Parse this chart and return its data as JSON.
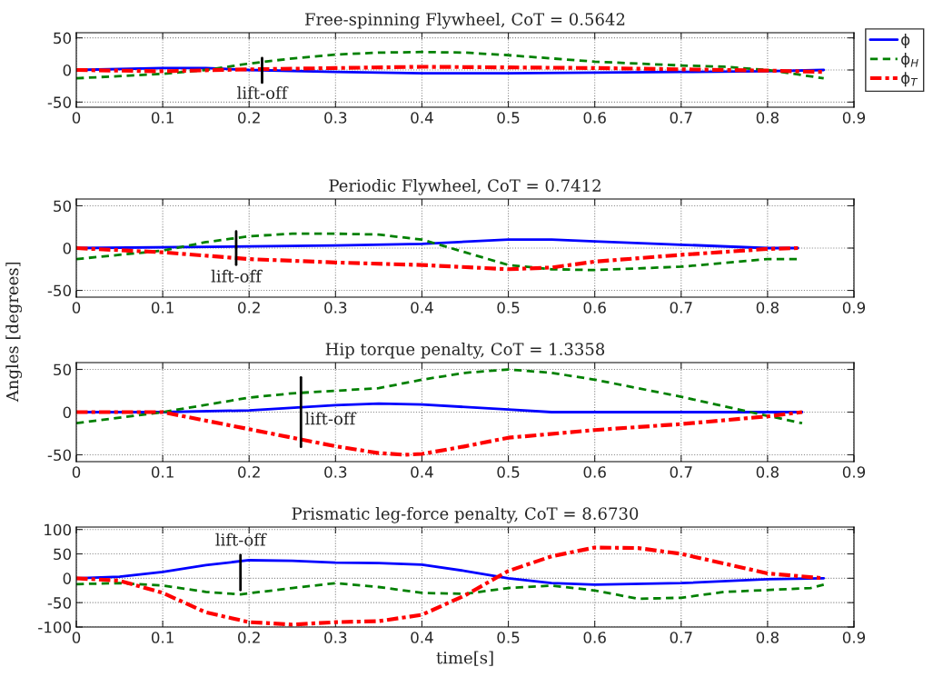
{
  "chart_data": [
    {
      "type": "line",
      "title": "Free-spinning Flywheel, CoT = 0.5642",
      "xlim": [
        0,
        0.9
      ],
      "xticks": [
        0,
        0.1,
        0.2,
        0.3,
        0.4,
        0.5,
        0.6,
        0.7,
        0.8,
        0.9
      ],
      "ylim": [
        -58,
        58
      ],
      "yticks": [
        -50,
        0,
        50
      ],
      "grid": true,
      "legend": "right",
      "ref_lines": [
        {
          "axis": "x",
          "value": 0.215,
          "label": "lift-off",
          "color": "#000000"
        }
      ],
      "series": [
        {
          "name": "ϕ",
          "color": "#0000ff",
          "line_style": "solid",
          "x": [
            0,
            0.1,
            0.15,
            0.2,
            0.3,
            0.4,
            0.5,
            0.6,
            0.7,
            0.8,
            0.865
          ],
          "values": [
            0,
            3,
            3,
            0,
            -3,
            -5,
            -5,
            -4,
            -3,
            -2,
            0
          ]
        },
        {
          "name": "ϕ$_{H}$",
          "color": "#008000",
          "line_style": "dashed",
          "x": [
            0,
            0.1,
            0.15,
            0.2,
            0.25,
            0.3,
            0.35,
            0.4,
            0.45,
            0.5,
            0.55,
            0.6,
            0.7,
            0.75,
            0.8,
            0.865
          ],
          "values": [
            -13,
            -6,
            0,
            10,
            18,
            24,
            27,
            28,
            27,
            23,
            18,
            13,
            7,
            5,
            0,
            -13
          ]
        },
        {
          "name": "ϕ$_{T}$",
          "color": "#ff0000",
          "line_style": "dashdot",
          "x": [
            0,
            0.1,
            0.2,
            0.3,
            0.4,
            0.5,
            0.6,
            0.7,
            0.8,
            0.865
          ],
          "values": [
            0,
            -2,
            1,
            3,
            5,
            4,
            3,
            1,
            -1,
            -3
          ]
        }
      ]
    },
    {
      "type": "line",
      "title": "Periodic Flywheel, CoT = 0.7412",
      "ylabel": "Angles [degrees]",
      "xlim": [
        0,
        0.9
      ],
      "xticks": [
        0,
        0.1,
        0.2,
        0.3,
        0.4,
        0.5,
        0.6,
        0.7,
        0.8,
        0.9
      ],
      "ylim": [
        -58,
        58
      ],
      "yticks": [
        -50,
        0,
        50
      ],
      "grid": true,
      "ref_lines": [
        {
          "axis": "x",
          "value": 0.185,
          "label": "lift-off",
          "color": "#000000"
        }
      ],
      "series": [
        {
          "color": "#0000ff",
          "line_style": "solid",
          "x": [
            0,
            0.2,
            0.3,
            0.4,
            0.5,
            0.55,
            0.6,
            0.7,
            0.8,
            0.835
          ],
          "values": [
            0,
            2,
            3,
            5,
            10,
            10,
            8,
            4,
            0,
            0
          ]
        },
        {
          "color": "#008000",
          "line_style": "dashed",
          "x": [
            0,
            0.1,
            0.15,
            0.2,
            0.25,
            0.3,
            0.35,
            0.4,
            0.45,
            0.5,
            0.55,
            0.6,
            0.7,
            0.8,
            0.835
          ],
          "values": [
            -13,
            -3,
            7,
            14,
            17,
            17,
            16,
            10,
            -5,
            -20,
            -25,
            -26,
            -22,
            -13,
            -13
          ]
        },
        {
          "color": "#ff0000",
          "line_style": "dashdot",
          "x": [
            0,
            0.1,
            0.2,
            0.3,
            0.4,
            0.5,
            0.55,
            0.6,
            0.7,
            0.8,
            0.835
          ],
          "values": [
            0,
            -5,
            -13,
            -17,
            -20,
            -25,
            -23,
            -16,
            -8,
            -1,
            0
          ]
        }
      ]
    },
    {
      "type": "line",
      "title": "Hip torque penalty, CoT = 1.3358",
      "xlim": [
        0,
        0.9
      ],
      "xticks": [
        0,
        0.1,
        0.2,
        0.3,
        0.4,
        0.5,
        0.6,
        0.7,
        0.8,
        0.9
      ],
      "ylim": [
        -58,
        58
      ],
      "yticks": [
        -50,
        0,
        50
      ],
      "grid": true,
      "ref_lines": [
        {
          "axis": "x",
          "value": 0.26,
          "label": "lift-off",
          "color": "#000000"
        }
      ],
      "series": [
        {
          "color": "#0000ff",
          "line_style": "solid",
          "x": [
            0,
            0.1,
            0.2,
            0.3,
            0.35,
            0.4,
            0.5,
            0.55,
            0.7,
            0.84
          ],
          "values": [
            0,
            0,
            2,
            8,
            10,
            9,
            3,
            0,
            0,
            0
          ]
        },
        {
          "color": "#008000",
          "line_style": "dashed",
          "x": [
            0,
            0.1,
            0.2,
            0.25,
            0.3,
            0.35,
            0.4,
            0.45,
            0.5,
            0.55,
            0.6,
            0.7,
            0.78,
            0.84
          ],
          "values": [
            -13,
            0,
            17,
            22,
            25,
            28,
            38,
            46,
            50,
            46,
            38,
            18,
            0,
            -13
          ]
        },
        {
          "color": "#ff0000",
          "line_style": "dashdot",
          "x": [
            0,
            0.1,
            0.2,
            0.25,
            0.3,
            0.35,
            0.38,
            0.4,
            0.45,
            0.5,
            0.6,
            0.7,
            0.8,
            0.84
          ],
          "values": [
            0,
            0,
            -20,
            -30,
            -40,
            -48,
            -50,
            -49,
            -40,
            -30,
            -21,
            -14,
            -5,
            0
          ]
        }
      ]
    },
    {
      "type": "line",
      "title": "Prismatic leg-force penalty, CoT = 8.6730",
      "xlabel": "time[s]",
      "xlim": [
        0,
        0.9
      ],
      "xticks": [
        0,
        0.1,
        0.2,
        0.3,
        0.4,
        0.5,
        0.6,
        0.7,
        0.8,
        0.9
      ],
      "ylim": [
        -100,
        105
      ],
      "yticks": [
        -100,
        -50,
        0,
        50,
        100
      ],
      "grid": true,
      "ref_lines": [
        {
          "axis": "x",
          "value": 0.19,
          "label": "lift-off",
          "color": "#000000"
        }
      ],
      "series": [
        {
          "color": "#0000ff",
          "line_style": "solid",
          "x": [
            0,
            0.05,
            0.1,
            0.15,
            0.2,
            0.25,
            0.3,
            0.35,
            0.4,
            0.45,
            0.5,
            0.55,
            0.6,
            0.7,
            0.8,
            0.865
          ],
          "values": [
            0,
            3,
            13,
            27,
            37,
            36,
            32,
            31,
            28,
            15,
            0,
            -10,
            -13,
            -10,
            -2,
            0
          ]
        },
        {
          "color": "#008000",
          "line_style": "dashed",
          "x": [
            0,
            0.05,
            0.1,
            0.15,
            0.19,
            0.25,
            0.3,
            0.35,
            0.4,
            0.45,
            0.5,
            0.55,
            0.6,
            0.65,
            0.7,
            0.75,
            0.85,
            0.865
          ],
          "values": [
            -12,
            -10,
            -15,
            -28,
            -33,
            -20,
            -10,
            -18,
            -30,
            -32,
            -20,
            -15,
            -25,
            -42,
            -40,
            -28,
            -20,
            -13
          ]
        },
        {
          "color": "#ff0000",
          "line_style": "dashdot",
          "x": [
            0,
            0.05,
            0.1,
            0.15,
            0.2,
            0.25,
            0.3,
            0.35,
            0.4,
            0.45,
            0.5,
            0.55,
            0.6,
            0.65,
            0.7,
            0.8,
            0.865
          ],
          "values": [
            0,
            -5,
            -30,
            -70,
            -90,
            -95,
            -90,
            -88,
            -75,
            -35,
            15,
            45,
            63,
            62,
            50,
            10,
            0
          ]
        }
      ]
    }
  ]
}
